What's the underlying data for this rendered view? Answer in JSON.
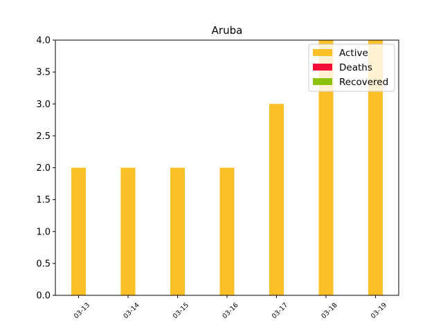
{
  "chart_data": {
    "type": "bar",
    "title": "Aruba",
    "xlabel": "",
    "ylabel": "",
    "categories": [
      "03-13",
      "03-14",
      "03-15",
      "03-16",
      "03-17",
      "03-18",
      "03-19"
    ],
    "series": [
      {
        "name": "Active",
        "color": "#fbbf27",
        "values": [
          2,
          2,
          2,
          2,
          3,
          4,
          4
        ]
      },
      {
        "name": "Deaths",
        "color": "#f40c3b",
        "values": [
          0,
          0,
          0,
          0,
          0,
          0,
          0
        ]
      },
      {
        "name": "Recovered",
        "color": "#8cc20b",
        "values": [
          0,
          0,
          0,
          0,
          0,
          0,
          0
        ]
      }
    ],
    "ylim": [
      0,
      4
    ],
    "yticks": [
      "0.0",
      "0.5",
      "1.0",
      "1.5",
      "2.0",
      "2.5",
      "3.0",
      "3.5",
      "4.0"
    ],
    "stacked": true,
    "grid": false,
    "legend_position": "top-right"
  }
}
